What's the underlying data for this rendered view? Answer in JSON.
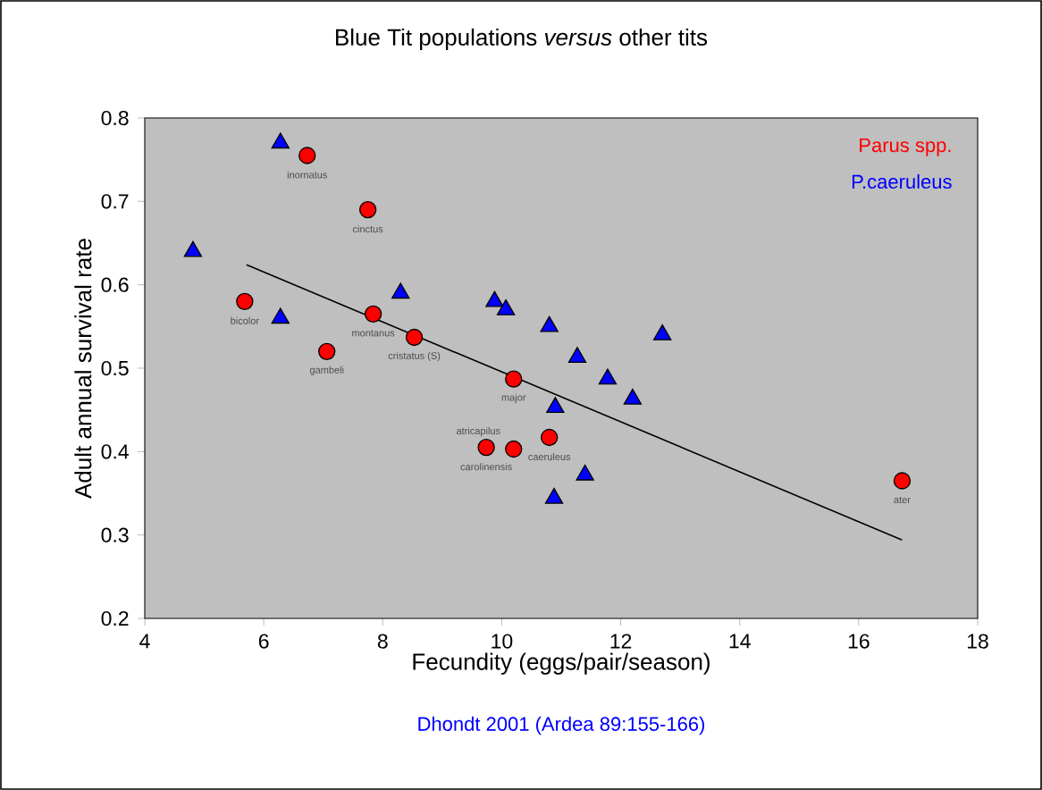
{
  "chart_data": {
    "type": "scatter",
    "title": "Blue Tit populations *versus* other tits",
    "xlabel": "Fecundity (eggs/pair/season)",
    "ylabel": "Adult annual survival rate",
    "xlim": [
      4,
      18
    ],
    "xticks": [
      4,
      6,
      8,
      10,
      12,
      14,
      16,
      18
    ],
    "ylim": [
      0.2,
      0.8
    ],
    "yticks": [
      0.2,
      0.3,
      0.4,
      0.5,
      0.6,
      0.7,
      0.8
    ],
    "grid": false,
    "series": [
      {
        "name": "Parus spp.",
        "marker": "circle",
        "color": "#ff0000",
        "x": [
          6.73,
          7.75,
          5.68,
          7.84,
          8.53,
          7.06,
          10.2,
          9.74,
          10.2,
          10.8,
          16.73
        ],
        "values": [
          0.755,
          0.69,
          0.58,
          0.565,
          0.537,
          0.52,
          0.487,
          0.405,
          0.403,
          0.417,
          0.365
        ]
      },
      {
        "name": "P.caeruleus",
        "marker": "triangle",
        "color": "#0000ff",
        "x": [
          6.28,
          4.81,
          6.28,
          8.3,
          9.88,
          10.07,
          10.8,
          12.7,
          11.27,
          11.78,
          12.2,
          10.9,
          11.4,
          10.88
        ],
        "values": [
          0.77,
          0.64,
          0.56,
          0.59,
          0.58,
          0.57,
          0.55,
          0.54,
          0.513,
          0.487,
          0.463,
          0.453,
          0.372,
          0.344
        ]
      },
      {
        "type": "line",
        "color": "#000000",
        "x": [
          5.71,
          16.73
        ],
        "values": [
          0.624,
          0.294
        ]
      }
    ],
    "annotations": [
      {
        "text": "inornatus",
        "x": 6.73,
        "y": 0.755
      },
      {
        "text": "cinctus",
        "x": 7.75,
        "y": 0.69
      },
      {
        "text": "bicolor",
        "x": 5.68,
        "y": 0.58
      },
      {
        "text": "montanus",
        "x": 7.84,
        "y": 0.565
      },
      {
        "text": "cristatus (S)",
        "x": 8.53,
        "y": 0.537
      },
      {
        "text": "gambeli",
        "x": 7.06,
        "y": 0.52
      },
      {
        "text": "major",
        "x": 10.2,
        "y": 0.487
      },
      {
        "text": "carolinensis",
        "x": 9.74,
        "y": 0.405
      },
      {
        "text": "atricapilus",
        "x": 10.2,
        "y": 0.403
      },
      {
        "text": "caeruleus",
        "x": 10.8,
        "y": 0.417
      },
      {
        "text": "ater",
        "x": 16.73,
        "y": 0.365
      },
      "Dhondt 2001 (Ardea 89:155-166)"
    ]
  }
}
